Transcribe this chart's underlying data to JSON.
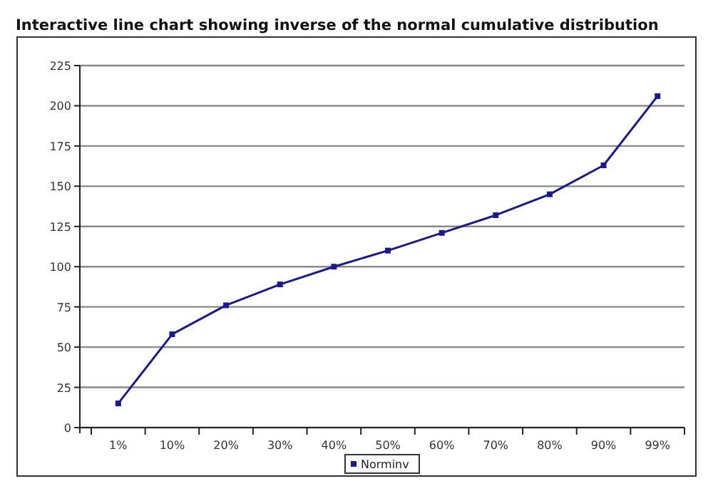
{
  "chart_data": {
    "type": "line",
    "title": "Interactive line chart showing  inverse of the normal cumulative distribution",
    "categories": [
      "1%",
      "10%",
      "20%",
      "30%",
      "40%",
      "50%",
      "60%",
      "70%",
      "80%",
      "90%",
      "99%"
    ],
    "series": [
      {
        "name": "Norminv",
        "color": "#1a1a8c",
        "values": [
          15,
          58,
          76,
          89,
          100,
          110,
          121,
          132,
          145,
          163,
          206
        ]
      }
    ],
    "ylim": [
      0,
      225
    ],
    "yticks": [
      0,
      25,
      50,
      75,
      100,
      125,
      150,
      175,
      200,
      225
    ],
    "grid": "y",
    "legend": "bottom",
    "marker": "square",
    "line_style": "solid"
  }
}
